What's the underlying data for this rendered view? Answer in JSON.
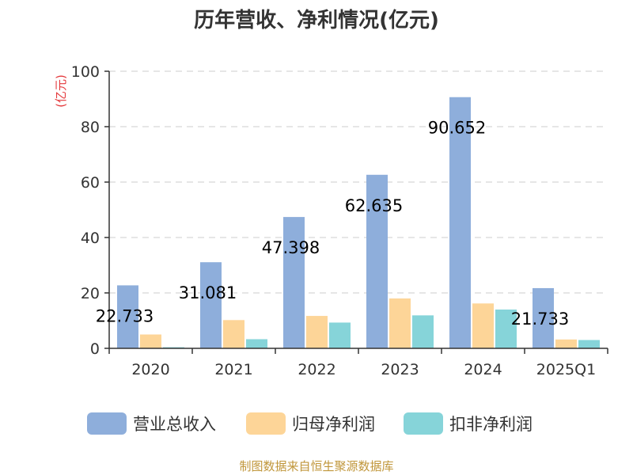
{
  "chart_data": {
    "type": "bar",
    "title": "历年营收、净利情况(亿元)",
    "ylabel": "(亿元)",
    "ylim": [
      0,
      100
    ],
    "yticks": [
      0,
      20,
      40,
      60,
      80,
      100
    ],
    "grid": true,
    "legend_position": "bottom",
    "categories": [
      "2020",
      "2021",
      "2022",
      "2023",
      "2024",
      "2025Q1"
    ],
    "series": [
      {
        "name": "营业总收入",
        "color": "#8eaedb",
        "values": [
          22.733,
          31.081,
          47.398,
          62.635,
          90.652,
          21.733
        ],
        "labels": [
          "22.733",
          "31.081",
          "47.398",
          "62.635",
          "90.652",
          "21.733"
        ]
      },
      {
        "name": "归母净利润",
        "color": "#fdd598",
        "values": [
          5.0,
          10.2,
          11.7,
          18.0,
          16.2,
          3.2
        ]
      },
      {
        "name": "扣非净利润",
        "color": "#86d4d9",
        "values": [
          0.4,
          3.3,
          9.3,
          11.9,
          14.0,
          3.0
        ]
      }
    ]
  },
  "source": "制图数据来自恒生聚源数据库"
}
